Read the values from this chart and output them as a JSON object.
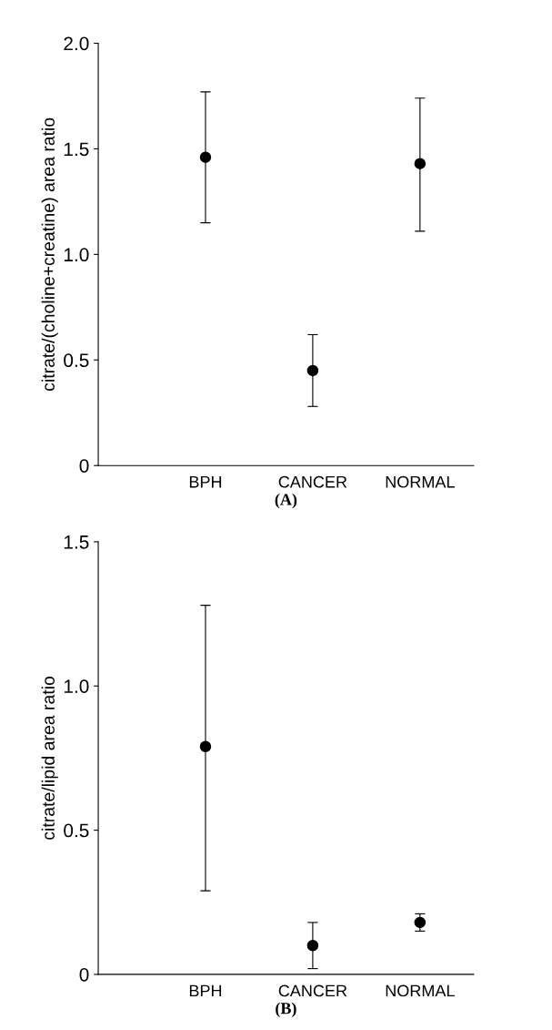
{
  "chart_data": [
    {
      "type": "scatter",
      "xlabel": "(A)",
      "ylabel": "citrate/(choline+creatine) area ratio",
      "categories": [
        null,
        "BPH",
        "CANCER",
        "NORMAL"
      ],
      "values": [
        null,
        1.46,
        0.45,
        1.43
      ],
      "errors": [
        null,
        [
          1.15,
          1.77
        ],
        [
          0.28,
          0.62
        ],
        [
          1.11,
          1.74
        ]
      ],
      "color": "#000000",
      "marker": "circle",
      "ylim": [
        0,
        2.0
      ],
      "yticks": [
        0,
        {
          "value": 0.5,
          "label": "0.5"
        },
        {
          "value": 1.0,
          "label": "1.0"
        },
        {
          "value": 1.5,
          "label": "1.5"
        },
        {
          "value": 2.0,
          "label": "2.0"
        }
      ],
      "grid": false,
      "legend": false
    },
    {
      "type": "scatter",
      "xlabel": "(B)",
      "ylabel": "citrate/lipid area ratio",
      "categories": [
        null,
        "BPH",
        "CANCER",
        "NORMAL"
      ],
      "values": [
        null,
        0.79,
        0.1,
        0.18
      ],
      "errors": [
        null,
        [
          0.29,
          1.28
        ],
        [
          0.02,
          0.18
        ],
        [
          0.15,
          0.21
        ]
      ],
      "color": "#000000",
      "marker": "circle",
      "ylim": [
        0,
        1.5
      ],
      "yticks": [
        0,
        {
          "value": 0.5,
          "label": "0.5"
        },
        {
          "value": 1.0,
          "label": "1.0"
        },
        {
          "value": 1.5,
          "label": "1.5"
        }
      ],
      "grid": false,
      "legend": false
    }
  ]
}
